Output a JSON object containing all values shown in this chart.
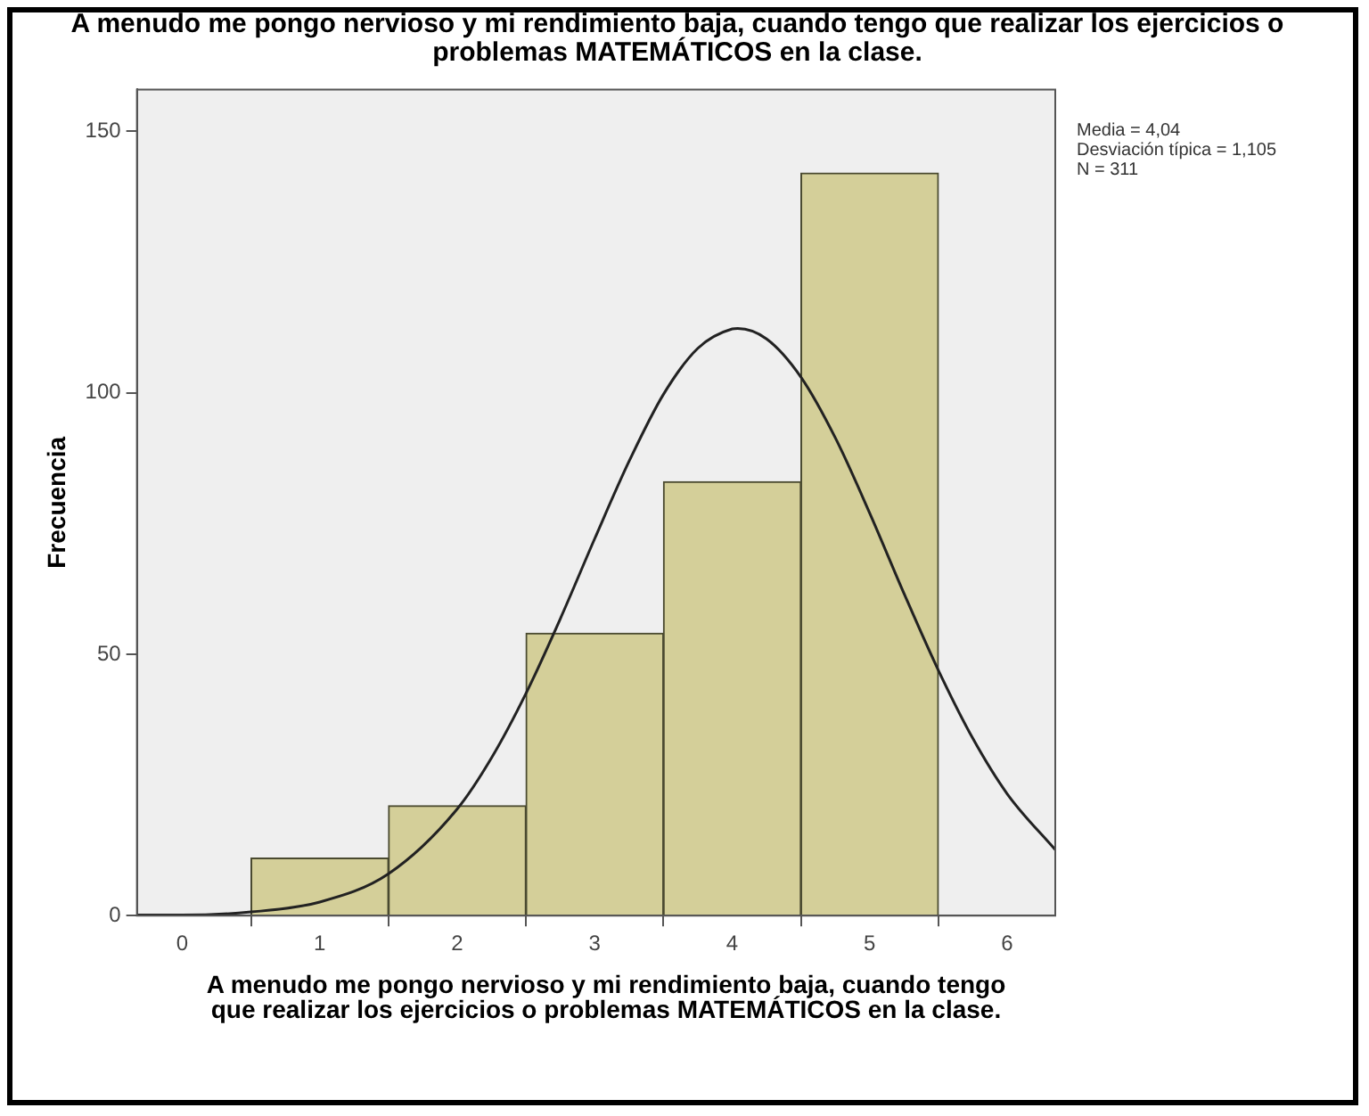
{
  "chart_data": {
    "type": "histogram",
    "title": "A menudo me pongo nervioso y mi rendimiento baja, cuando tengo que realizar los ejercicios o problemas MATEMÁTICOS en la clase.",
    "xlabel": "A menudo me pongo nervioso y mi rendimiento baja, cuando tengo que realizar los ejercicios o problemas MATEMÁTICOS en la clase.",
    "ylabel": "Frecuencia",
    "annotations": [
      "Media = 4,04",
      "Desviación típica = 1,105",
      "N = 311"
    ],
    "series": [
      {
        "color": "#d4cf99",
        "bins": [
          0.5,
          1.5,
          2.5,
          3.5,
          4.5,
          5.5
        ],
        "values": [
          11,
          21,
          54,
          83,
          142
        ]
      },
      {
        "type": "line",
        "color": "#222222",
        "x": [
          -0.33,
          0,
          0.5,
          1,
          1.5,
          2,
          2.25,
          2.5,
          2.75,
          3,
          3.25,
          3.5,
          3.75,
          4,
          4.04,
          4.25,
          4.5,
          4.75,
          5,
          5.25,
          5.5,
          5.75,
          6,
          6.35
        ],
        "values": [
          0.1,
          0.1,
          0.7,
          2.6,
          8,
          20.4,
          30.2,
          42.5,
          56.8,
          72.1,
          86.9,
          99.7,
          108.5,
          112.2,
          112.3,
          110.3,
          103,
          91.4,
          77,
          61.6,
          46.9,
          33.9,
          23.3,
          12.6
        ]
      }
    ],
    "xlim": [
      -0.33,
      6.35
    ],
    "xticks": [
      0,
      1,
      2,
      3,
      4,
      5,
      6
    ],
    "ylim": [
      0,
      158
    ],
    "yticks": [
      0,
      50,
      100,
      150
    ],
    "grid": false,
    "legend": false,
    "marker": "none",
    "line_style": "solid"
  }
}
